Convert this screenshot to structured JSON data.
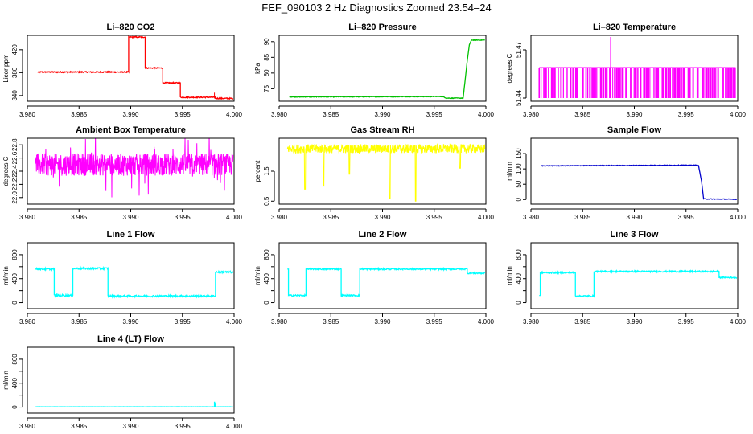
{
  "page": {
    "title": "FEF_090103  2 Hz Diagnostics Zoomed 23.54–24"
  },
  "chart_data": [
    {
      "type": "line",
      "title": "Li–820 CO2",
      "ylabel": "Licor ppm",
      "color": "#ff0000",
      "xlim": [
        3.98,
        4.0
      ],
      "ylim": [
        330,
        445
      ],
      "xticks": [
        3.98,
        3.985,
        3.99,
        3.995,
        4.0
      ],
      "xticklabels": [
        "3.980",
        "3.985",
        "3.990",
        "3.995",
        "4.000"
      ],
      "yticks": [
        340,
        380,
        420
      ],
      "yticklabels": [
        "340",
        "380",
        "420"
      ],
      "x": [
        3.981,
        3.9898,
        3.9898,
        3.9914,
        3.9914,
        3.9931,
        3.9931,
        3.9948,
        3.9948,
        3.9982,
        3.9982,
        3.9999
      ],
      "y": [
        381,
        381,
        442,
        442,
        388,
        388,
        362,
        362,
        337,
        337,
        335,
        335
      ],
      "noise": 1,
      "spikes": [
        [
          3.9981,
          345
        ]
      ]
    },
    {
      "type": "line",
      "title": "Li–820 Pressure",
      "ylabel": "kPa",
      "color": "#00c000",
      "xlim": [
        3.98,
        4.0
      ],
      "ylim": [
        71,
        92
      ],
      "xticks": [
        3.98,
        3.985,
        3.99,
        3.995,
        4.0
      ],
      "xticklabels": [
        "3.980",
        "3.985",
        "3.990",
        "3.995",
        "4.000"
      ],
      "yticks": [
        75,
        80,
        85,
        90
      ],
      "yticklabels": [
        "75",
        "80",
        "85",
        "90"
      ],
      "x": [
        3.981,
        3.9958,
        3.9962,
        3.9978,
        3.9982,
        3.9984,
        3.9986,
        3.9999
      ],
      "y": [
        72.4,
        72.5,
        72.0,
        72.0,
        84,
        89,
        90.5,
        90.5
      ],
      "noise": 0.1,
      "spikes": []
    },
    {
      "type": "barcode",
      "title": "Li–820 Temperature",
      "ylabel": "degrees C",
      "color": "#ff00ff",
      "xlim": [
        3.98,
        4.0
      ],
      "ylim": [
        51.438,
        51.479
      ],
      "xticks": [
        3.98,
        3.985,
        3.99,
        3.995,
        4.0
      ],
      "xticklabels": [
        "3.980",
        "3.985",
        "3.990",
        "3.995",
        "4.000"
      ],
      "yticks": [
        51.44,
        51.47
      ],
      "yticklabels": [
        "51.44",
        "51.47"
      ],
      "base": 51.44,
      "top": 51.459,
      "spike_x": 3.9877,
      "spike_y": 51.478,
      "x_start": 3.9808,
      "x_end": 3.9998
    },
    {
      "type": "noise",
      "title": "Ambient Box Temperature",
      "ylabel": "degrees C",
      "color": "#ff00ff",
      "xlim": [
        3.98,
        4.0
      ],
      "ylim": [
        21.9,
        22.9
      ],
      "xticks": [
        3.98,
        3.985,
        3.99,
        3.995,
        4.0
      ],
      "xticklabels": [
        "3.980",
        "3.985",
        "3.990",
        "3.995",
        "4.000"
      ],
      "yticks": [
        22.0,
        22.2,
        22.4,
        22.6,
        22.8
      ],
      "yticklabels": [
        "22.0",
        "22.2",
        "22.4",
        "22.6",
        "22.8"
      ],
      "center": 22.5,
      "band": 0.17,
      "outliers": 0.35,
      "x_start": 3.9808,
      "x_end": 3.9999
    },
    {
      "type": "noise",
      "title": "Gas Stream RH",
      "ylabel": "percent",
      "color": "#ffff00",
      "xlim": [
        3.98,
        4.0
      ],
      "ylim": [
        0.4,
        2.6
      ],
      "xticks": [
        3.98,
        3.985,
        3.99,
        3.995,
        4.0
      ],
      "xticklabels": [
        "3.980",
        "3.985",
        "3.990",
        "3.995",
        "4.000"
      ],
      "yticks": [
        0.5,
        1.5
      ],
      "yticklabels": [
        "0.5",
        "1.5"
      ],
      "center": 2.25,
      "band": 0.15,
      "dips": [
        [
          3.9825,
          0.9
        ],
        [
          3.9843,
          1.0
        ],
        [
          3.9907,
          0.6
        ],
        [
          3.9932,
          0.5
        ],
        [
          3.9868,
          1.4
        ],
        [
          3.9975,
          1.6
        ]
      ],
      "x_start": 3.9808,
      "x_end": 3.9999
    },
    {
      "type": "line",
      "title": "Sample Flow",
      "ylabel": "ml/min",
      "color": "#0000cc",
      "xlim": [
        3.98,
        4.0
      ],
      "ylim": [
        -15,
        200
      ],
      "xticks": [
        3.98,
        3.985,
        3.99,
        3.995,
        4.0
      ],
      "xticklabels": [
        "3.980",
        "3.985",
        "3.990",
        "3.995",
        "4.000"
      ],
      "yticks": [
        0,
        50,
        100,
        150
      ],
      "yticklabels": [
        "0",
        "50",
        "100",
        "150"
      ],
      "x": [
        3.981,
        3.9945,
        3.9962,
        3.9965,
        3.9967,
        3.9999
      ],
      "y": [
        110,
        112,
        112,
        60,
        2,
        1
      ],
      "noise": 1,
      "spikes": []
    },
    {
      "type": "line",
      "title": "Line 1 Flow",
      "ylabel": "ml/min",
      "color": "#00ffff",
      "xlim": [
        3.98,
        4.0
      ],
      "ylim": [
        -100,
        1000
      ],
      "xticks": [
        3.98,
        3.985,
        3.99,
        3.995,
        4.0
      ],
      "xticklabels": [
        "3.980",
        "3.985",
        "3.990",
        "3.995",
        "4.000"
      ],
      "yticks": [
        0,
        200,
        400,
        600,
        800
      ],
      "yticklabels": [
        "0",
        "400",
        "800"
      ],
      "x": [
        3.9808,
        3.9826,
        3.9826,
        3.9844,
        3.9844,
        3.9878,
        3.9878,
        3.9982,
        3.9982,
        3.9999
      ],
      "y": [
        560,
        560,
        120,
        120,
        570,
        570,
        110,
        110,
        510,
        510
      ],
      "noise": 15,
      "spikes": []
    },
    {
      "type": "line",
      "title": "Line 2 Flow",
      "ylabel": "ml/min",
      "color": "#00ffff",
      "xlim": [
        3.98,
        4.0
      ],
      "ylim": [
        -100,
        1000
      ],
      "xticks": [
        3.98,
        3.985,
        3.99,
        3.995,
        4.0
      ],
      "xticklabels": [
        "3.980",
        "3.985",
        "3.990",
        "3.995",
        "4.000"
      ],
      "yticks": [
        0,
        200,
        400,
        600,
        800
      ],
      "yticklabels": [
        "0",
        "400",
        "800"
      ],
      "x": [
        3.9808,
        3.9809,
        3.9809,
        3.9826,
        3.9826,
        3.986,
        3.986,
        3.9878,
        3.9878,
        3.9982,
        3.9982,
        3.9999
      ],
      "y": [
        560,
        560,
        120,
        120,
        560,
        560,
        120,
        120,
        560,
        560,
        490,
        490
      ],
      "noise": 12,
      "spikes": []
    },
    {
      "type": "line",
      "title": "Line 3 Flow",
      "ylabel": "ml/min",
      "color": "#00ffff",
      "xlim": [
        3.98,
        4.0
      ],
      "ylim": [
        -100,
        1000
      ],
      "xticks": [
        3.98,
        3.985,
        3.99,
        3.995,
        4.0
      ],
      "xticklabels": [
        "3.980",
        "3.985",
        "3.990",
        "3.995",
        "4.000"
      ],
      "yticks": [
        0,
        200,
        400,
        600,
        800
      ],
      "yticklabels": [
        "0",
        "400",
        "800"
      ],
      "x": [
        3.9808,
        3.9809,
        3.9809,
        3.9843,
        3.9843,
        3.9861,
        3.9861,
        3.9982,
        3.9982,
        3.9999
      ],
      "y": [
        120,
        120,
        500,
        500,
        110,
        110,
        520,
        520,
        420,
        420
      ],
      "noise": 12,
      "spikes": []
    },
    {
      "type": "line",
      "title": "Line 4 (LT) Flow",
      "ylabel": "ml/min",
      "color": "#00ffff",
      "xlim": [
        3.98,
        4.0
      ],
      "ylim": [
        -100,
        1000
      ],
      "xticks": [
        3.98,
        3.985,
        3.99,
        3.995,
        4.0
      ],
      "xticklabels": [
        "3.980",
        "3.985",
        "3.990",
        "3.995",
        "4.000"
      ],
      "yticks": [
        0,
        200,
        400,
        600,
        800
      ],
      "yticklabels": [
        "0",
        "400",
        "800"
      ],
      "x": [
        3.9808,
        3.9981,
        3.9981,
        3.9982,
        3.9982,
        3.9999
      ],
      "y": [
        5,
        5,
        90,
        20,
        5,
        5
      ],
      "noise": 2,
      "spikes": []
    }
  ]
}
